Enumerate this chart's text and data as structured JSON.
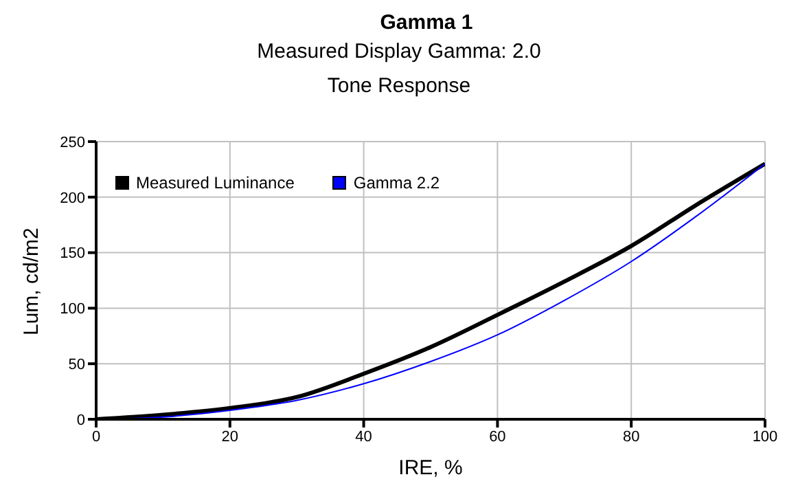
{
  "chart_data": {
    "type": "line",
    "title": "Gamma 1",
    "subtitle": "Measured Display Gamma: 2.0",
    "annotations": [
      "Tone Response"
    ],
    "xlabel": "IRE, %",
    "ylabel": "Lum, cd/m2",
    "x": [
      0,
      10,
      20,
      30,
      40,
      50,
      60,
      70,
      80,
      90,
      100
    ],
    "series": [
      {
        "name": "Measured Luminance",
        "color": "#000000",
        "values": [
          0,
          4,
          10,
          20,
          41,
          65,
          94,
          124,
          156,
          194,
          230
        ]
      },
      {
        "name": "Gamma 2.2",
        "color": "#0000ff",
        "values": [
          0,
          2,
          8,
          17,
          32,
          52,
          76,
          107,
          142,
          184,
          230
        ]
      }
    ],
    "xlim": [
      0,
      100
    ],
    "xticks": [
      0,
      20,
      40,
      60,
      80,
      100
    ],
    "ylim": [
      0,
      250
    ],
    "yticks": [
      0,
      50,
      100,
      150,
      200,
      250
    ],
    "grid": true,
    "legend": "top left",
    "marker": "none",
    "line_style": "solid"
  }
}
